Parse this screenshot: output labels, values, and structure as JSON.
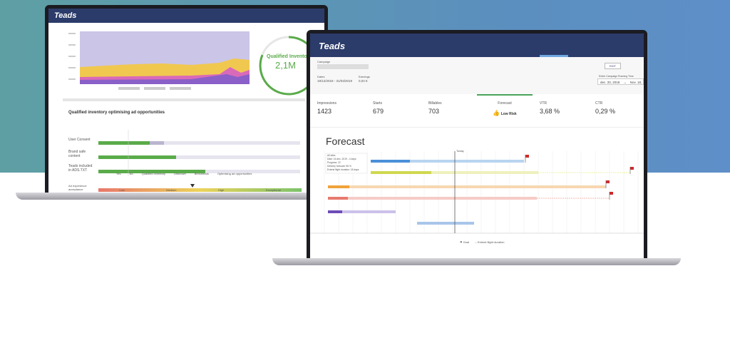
{
  "left_screen": {
    "logo": "Teads",
    "kpi": {
      "title": "Qualified Inventory",
      "value": "2,1M"
    },
    "section_title": "Qualified inventory optimising ad opportunities",
    "rows": [
      "User Consent",
      "Brand safe content",
      "Teads included in ADS.TXT"
    ],
    "legend": [
      "Yes",
      "No",
      "Qualified Inventory",
      "Unknown",
      "Benchmark",
      "Optimising ad opportunities"
    ],
    "experience": {
      "label": "Ad experience acceptance",
      "scale": [
        "Low",
        "Medium",
        "High",
        "Exceptional"
      ]
    }
  },
  "right_screen": {
    "logo": "Teads",
    "campaign_label": "Campaign",
    "dates_label": "Dates",
    "dates": "19/12/2018 - 31/03/2019",
    "earnings_label": "Earnings",
    "earnings": "0,04 €",
    "edit": "EDIT",
    "range_label": "Entire Campaign Running Time",
    "range_from": "dec. 20, 2018",
    "range_to": "Nov. 18,",
    "tabs": [
      {
        "label": "Impressions",
        "value": "1423"
      },
      {
        "label": "Starts",
        "value": "679"
      },
      {
        "label": "Billables",
        "value": "703"
      },
      {
        "label": "Forecast",
        "value": "Low Risk"
      },
      {
        "label": "VTR",
        "value": "3,68 %"
      },
      {
        "label": "CTR",
        "value": "0,29 %"
      }
    ],
    "forecast": {
      "title": "Forecast",
      "today": "Today",
      "tooltip": [
        "All sites",
        "Date: 16 dec. 2019 - 4 days",
        "Progress: 22",
        "Delivery forecast: 96 %",
        "Extend flight duration: 18 days"
      ],
      "legend": [
        "Goal",
        "Extend flight duration"
      ]
    }
  }
}
